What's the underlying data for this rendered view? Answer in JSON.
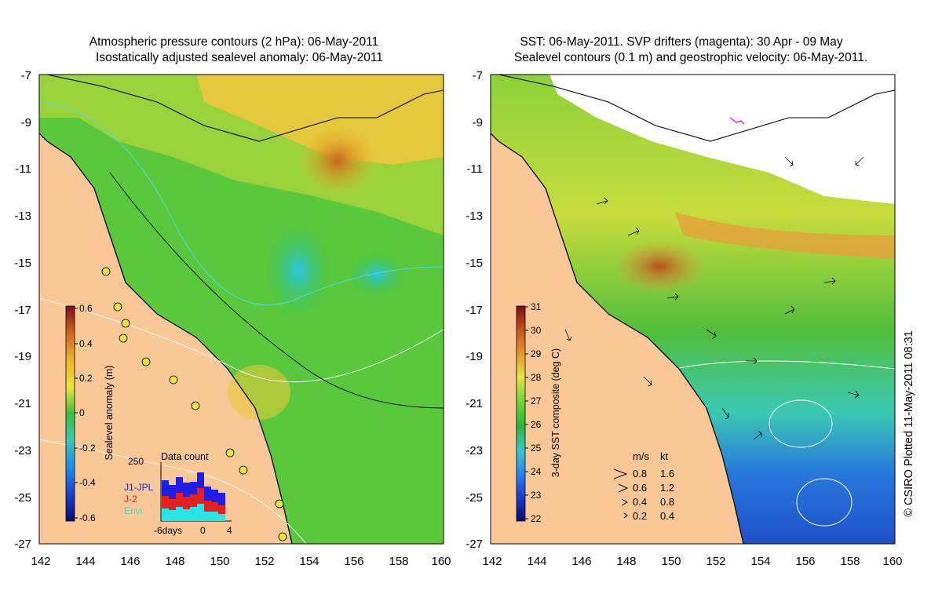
{
  "left_panel": {
    "title_line1": "Atmospheric pressure contours (2 hPa): 06-May-2011",
    "title_line2": "Isostatically adjusted sealevel anomaly: 06-May-2011",
    "colorbar_label": "Sealevel anomaly (m)",
    "colorbar_ticks": [
      "0.6",
      "0.4",
      "0.2",
      "0",
      "-0.2",
      "-0.4",
      "-0.6"
    ],
    "inset": {
      "title": "Data count",
      "ytick": "250",
      "legend": [
        "J1-JPL",
        "J-2",
        "Envi"
      ],
      "xticks": [
        "-6days",
        "0",
        "4"
      ],
      "series_colors": [
        "#1e1ee6",
        "#e61e1e",
        "#28e6e6"
      ]
    }
  },
  "right_panel": {
    "title_line1": "SST: 06-May-2011. SVP drifters (magenta): 30 Apr - 09 May",
    "title_line2": "Sealevel contours (0.1 m) and geostrophic velocity: 06-May-2011.",
    "colorbar_label": "3-day SST composite (deg C)",
    "colorbar_ticks": [
      "31",
      "30",
      "29",
      "28",
      "27",
      "26",
      "25",
      "24",
      "23",
      "22"
    ],
    "speed_legend": {
      "header_ms": "m/s",
      "header_kt": "kt",
      "rows": [
        {
          "ms": "0.8",
          "kt": "1.6"
        },
        {
          "ms": "0.6",
          "kt": "1.2"
        },
        {
          "ms": "0.4",
          "kt": "0.8"
        },
        {
          "ms": "0.2",
          "kt": "0.4"
        }
      ]
    }
  },
  "axes": {
    "y_labels": [
      "-7",
      "-9",
      "-11",
      "-13",
      "-15",
      "-17",
      "-19",
      "-21",
      "-23",
      "-25",
      "-27"
    ],
    "x_labels": [
      "142",
      "144",
      "146",
      "148",
      "150",
      "152",
      "154",
      "156",
      "158",
      "160"
    ]
  },
  "credit": "© CSIRO Plotted 11-May-2011 08:31",
  "colors": {
    "land": "#fac896",
    "sla_mid": "#5ac83c",
    "sst_warm": "#e6a03c"
  }
}
